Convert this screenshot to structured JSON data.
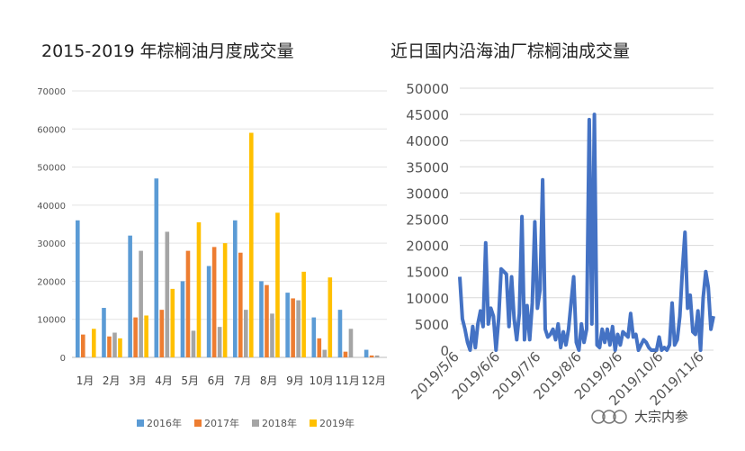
{
  "chart_data": [
    {
      "type": "bar",
      "title": "2015-2019 年棕榈油月度成交量",
      "categories": [
        "1月",
        "2月",
        "3月",
        "4月",
        "5月",
        "6月",
        "7月",
        "8月",
        "9月",
        "10月",
        "11月",
        "12月"
      ],
      "ylim": [
        0,
        70000
      ],
      "yticks": [
        "0",
        "10000",
        "20000",
        "30000",
        "40000",
        "50000",
        "60000",
        "70000"
      ],
      "grid": true,
      "legend_position": "bottom",
      "series": [
        {
          "name": "2016年",
          "color": "#5b9bd5",
          "values": [
            36000,
            13000,
            32000,
            47000,
            20000,
            24000,
            36000,
            20000,
            17000,
            10500,
            12500,
            2000
          ]
        },
        {
          "name": "2017年",
          "color": "#ed7d31",
          "values": [
            6000,
            5500,
            10500,
            12500,
            28000,
            29000,
            27500,
            19000,
            15500,
            5000,
            1500,
            500
          ]
        },
        {
          "name": "2018年",
          "color": "#a5a5a5",
          "values": [
            0,
            6500,
            28000,
            33000,
            7000,
            8000,
            12500,
            11500,
            15000,
            2000,
            7500,
            500
          ]
        },
        {
          "name": "2019年",
          "color": "#ffc000",
          "values": [
            7500,
            5000,
            11000,
            18000,
            35500,
            30000,
            59000,
            38000,
            22500,
            21000,
            0,
            0
          ]
        }
      ]
    },
    {
      "type": "line",
      "title": "近日国内沿海油厂棕榈油成交量",
      "ylim": [
        0,
        50000
      ],
      "yticks": [
        "0",
        "5000",
        "10000",
        "15000",
        "20000",
        "25000",
        "30000",
        "35000",
        "40000",
        "45000",
        "50000"
      ],
      "xticks": [
        "2019/5/6",
        "2019/6/6",
        "2019/7/6",
        "2019/8/6",
        "2019/9/6",
        "2019/10/6",
        "2019/11/6"
      ],
      "grid": true,
      "color": "#4472c4",
      "values": [
        14000,
        6000,
        4000,
        1500,
        0,
        4500,
        500,
        5000,
        7500,
        4500,
        20500,
        5000,
        8000,
        6500,
        0,
        6000,
        15500,
        15000,
        14500,
        4500,
        14000,
        6000,
        2000,
        7000,
        25500,
        2000,
        8500,
        2000,
        9000,
        24500,
        8000,
        11500,
        32500,
        4000,
        2500,
        3000,
        4000,
        2000,
        5000,
        500,
        3500,
        1000,
        4000,
        9000,
        14000,
        1500,
        0,
        5000,
        1500,
        4000,
        44000,
        5000,
        45000,
        1000,
        500,
        4000,
        1500,
        4000,
        1000,
        4500,
        0,
        3000,
        1000,
        3500,
        3000,
        2500,
        7000,
        2500,
        3000,
        0,
        1000,
        2000,
        1500,
        500,
        0,
        0,
        0,
        2500,
        0,
        500,
        0,
        1000,
        9000,
        1000,
        2000,
        6500,
        15500,
        22500,
        8000,
        10500,
        3500,
        3000,
        7500,
        0,
        10000,
        15000,
        12000,
        4000,
        6500
      ]
    }
  ],
  "watermark": "大宗内参"
}
